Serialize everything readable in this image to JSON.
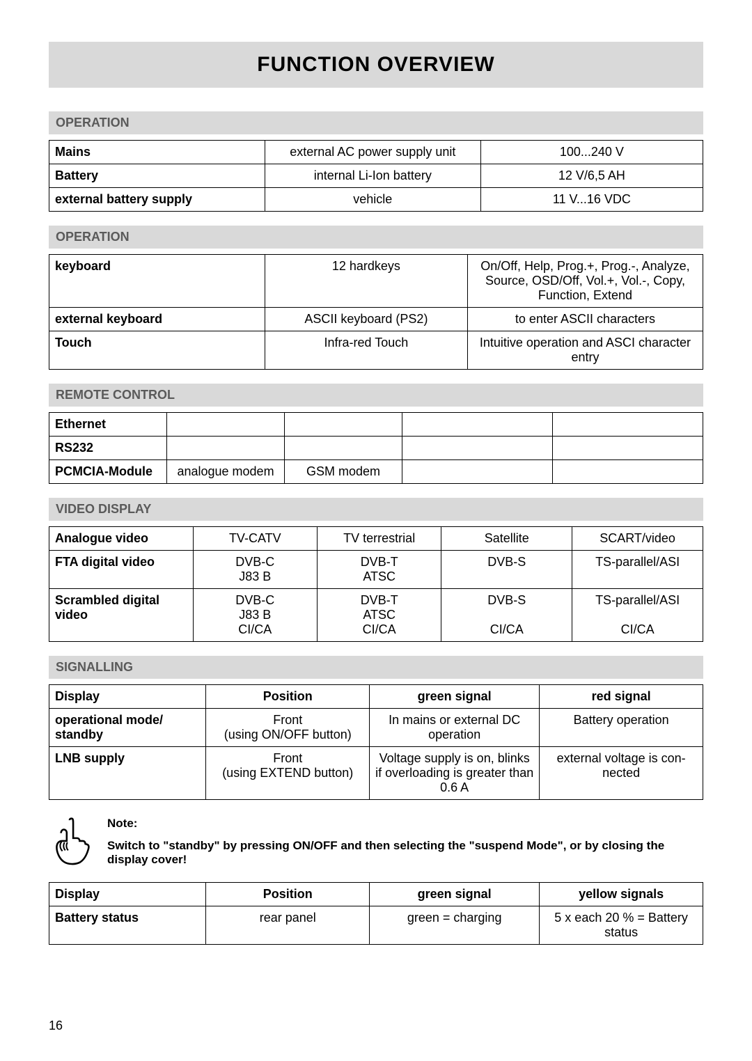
{
  "title": "FUNCTION OVERVIEW",
  "page_number": "16",
  "sections": {
    "operation1": {
      "header": "OPERATION",
      "rows": [
        {
          "label": "Mains",
          "c2": "external AC power supply unit",
          "c3": "100...240 V"
        },
        {
          "label": "Battery",
          "c2": "internal Li-Ion battery",
          "c3": "12 V/6,5 AH"
        },
        {
          "label": "external battery supply",
          "c2": "vehicle",
          "c3": "11 V...16 VDC"
        }
      ]
    },
    "operation2": {
      "header": "OPERATION",
      "rows": [
        {
          "label": "keyboard",
          "c2": "12 hardkeys",
          "c3": "On/Off, Help, Prog.+, Prog.-, Analyze, Source, OSD/Off, Vol.+, Vol.-, Copy, Function, Extend"
        },
        {
          "label": "external keyboard",
          "c2": "ASCII keyboard (PS2)",
          "c3": "to enter ASCII characters"
        },
        {
          "label": "Touch",
          "c2": "Infra-red Touch",
          "c3": "Intuitive operation and ASCI character entry"
        }
      ]
    },
    "remote_control": {
      "header": "REMOTE CONTROL",
      "rows": [
        {
          "label": "Ethernet",
          "c2": "",
          "c3": "",
          "c4": "",
          "c5": ""
        },
        {
          "label": "RS232",
          "c2": "",
          "c3": "",
          "c4": "",
          "c5": ""
        },
        {
          "label": "PCMCIA-Module",
          "c2": "analogue modem",
          "c3": "GSM modem",
          "c4": "",
          "c5": ""
        }
      ]
    },
    "video_display": {
      "header": "VIDEO DISPLAY",
      "rows": [
        {
          "label": "Analogue video",
          "c2": "TV-CATV",
          "c3": "TV terrestrial",
          "c4": "Satellite",
          "c5": "SCART/video"
        },
        {
          "label": "FTA digital video",
          "c2": "DVB-C\nJ83 B",
          "c3": "DVB-T\nATSC",
          "c4": "DVB-S",
          "c5": "TS-parallel/ASI"
        },
        {
          "label": "Scrambled digital video",
          "c2": "DVB-C\nJ83 B\nCI/CA",
          "c3": "DVB-T\nATSC\nCI/CA",
          "c4": "DVB-S\n\nCI/CA",
          "c5": "TS-parallel/ASI\n\nCI/CA"
        }
      ]
    },
    "signalling": {
      "header": "SIGNALLING",
      "header_row": {
        "c1": "Display",
        "c2": "Position",
        "c3": "green signal",
        "c4": "red signal"
      },
      "rows": [
        {
          "label": "operational mode/ standby",
          "c2": "Front\n(using ON/OFF button)",
          "c3": "In mains or external DC operation",
          "c4": "Battery operation"
        },
        {
          "label": "LNB supply",
          "c2": "Front\n(using EXTEND button)",
          "c3": "Voltage supply is on, blinks if overloading is greater than 0.6 A",
          "c4": "external voltage is con-\nnected"
        }
      ]
    },
    "note": {
      "label": "Note:",
      "text": "Switch to \"standby\" by pressing ON/OFF and then selecting the \"suspend Mode\", or by closing the display cover!"
    },
    "battery_status": {
      "header_row": {
        "c1": "Display",
        "c2": "Position",
        "c3": "green signal",
        "c4": "yellow signals"
      },
      "rows": [
        {
          "label": "Battery status",
          "c2": "rear panel",
          "c3": "green = charging",
          "c4": "5 x each 20 % = Battery status"
        }
      ]
    }
  },
  "styles": {
    "title_bg": "#d9d9d9",
    "section_header_bg": "#d9d9d9",
    "section_header_color": "#5a5a5a",
    "border_color": "#000000",
    "body_font_size": 18
  }
}
